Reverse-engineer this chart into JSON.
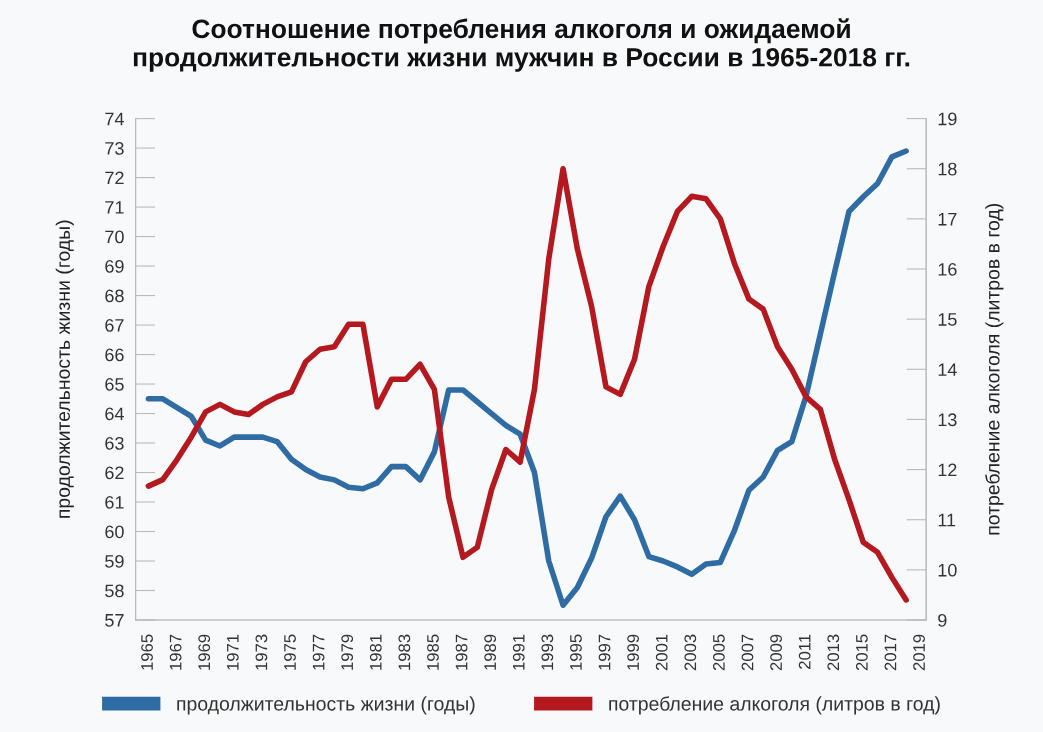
{
  "chart_data": {
    "type": "line",
    "title": "Соотношение потребления алкоголя и ожидаемой\nпродолжительности жизни мужчин в России в 1965-2018 гг.",
    "ylabel": "продолжительность жизни (годы)",
    "y2label": "потребление алкоголя (литров в год)",
    "x": [
      1965,
      1966,
      1967,
      1968,
      1969,
      1970,
      1971,
      1972,
      1973,
      1974,
      1975,
      1976,
      1977,
      1978,
      1979,
      1980,
      1981,
      1982,
      1983,
      1984,
      1985,
      1986,
      1987,
      1988,
      1989,
      1990,
      1991,
      1992,
      1993,
      1994,
      1995,
      1996,
      1997,
      1998,
      1999,
      2000,
      2001,
      2002,
      2003,
      2004,
      2005,
      2006,
      2007,
      2008,
      2009,
      2010,
      2011,
      2012,
      2013,
      2014,
      2015,
      2016,
      2017,
      2018
    ],
    "series": [
      {
        "name": "продолжительность жизни (годы)",
        "color": "#2f6ca3",
        "values": [
          64.5,
          64.5,
          64.2,
          63.9,
          63.1,
          62.9,
          63.2,
          63.2,
          63.2,
          63.05,
          62.45,
          62.1,
          61.85,
          61.75,
          61.5,
          61.45,
          61.65,
          62.2,
          62.2,
          61.75,
          62.7,
          64.8,
          64.8,
          64.4,
          64.0,
          63.6,
          63.3,
          62.0,
          59.0,
          57.5,
          58.1,
          59.1,
          60.5,
          61.2,
          60.4,
          59.15,
          59.0,
          58.8,
          58.55,
          58.9,
          58.95,
          60.05,
          61.4,
          61.85,
          62.75,
          63.05,
          64.6,
          66.7,
          68.8,
          70.85,
          71.35,
          71.8,
          72.7,
          72.9
        ]
      },
      {
        "name": "потребление алкоголя (литров в год)",
        "color": "#b3191f",
        "axis": "y2",
        "values": [
          11.67,
          11.8,
          12.2,
          12.65,
          13.15,
          13.3,
          13.15,
          13.1,
          13.3,
          13.45,
          13.55,
          14.15,
          14.4,
          14.45,
          14.9,
          14.9,
          13.25,
          13.8,
          13.8,
          14.1,
          13.6,
          11.45,
          10.25,
          10.45,
          11.6,
          12.4,
          12.15,
          13.6,
          16.2,
          18.0,
          16.4,
          15.25,
          13.65,
          13.5,
          14.2,
          15.65,
          16.45,
          17.15,
          17.45,
          17.4,
          17.0,
          16.1,
          15.4,
          15.2,
          14.45,
          14.0,
          13.45,
          13.2,
          12.2,
          11.4,
          10.55,
          10.35,
          9.85,
          9.4
        ]
      }
    ],
    "xlim": [
      1964.1,
      2019.4
    ],
    "xticks": [
      1965,
      1967,
      1969,
      1971,
      1973,
      1975,
      1977,
      1979,
      1981,
      1983,
      1985,
      1987,
      1989,
      1991,
      1993,
      1995,
      1997,
      1999,
      2001,
      2003,
      2005,
      2007,
      2009,
      2011,
      2013,
      2015,
      2017,
      2019
    ],
    "ylim": [
      57,
      74
    ],
    "yticks": [
      57,
      58,
      59,
      60,
      61,
      62,
      63,
      64,
      65,
      66,
      67,
      68,
      69,
      70,
      71,
      72,
      73,
      74
    ],
    "y2lim": [
      9,
      19
    ],
    "y2ticks": [
      9,
      10,
      11,
      12,
      13,
      14,
      15,
      16,
      17,
      18,
      19
    ],
    "legend": "bottom",
    "grid": false,
    "marker": "none",
    "line_style": "solid"
  }
}
